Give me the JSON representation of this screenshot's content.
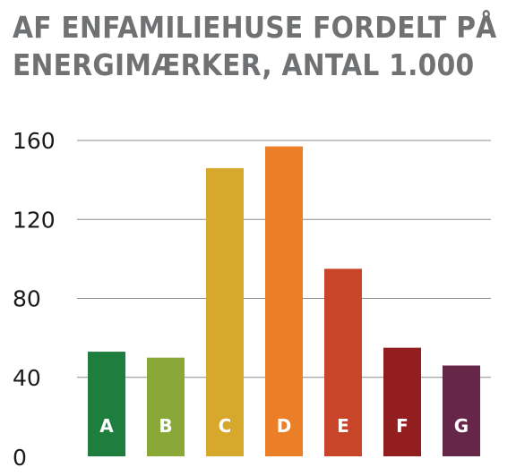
{
  "chart_data": {
    "type": "bar",
    "title_lines": [
      "AF ENFAMILIEHUSE FORDELT PÅ",
      "ENERGIMÆRKER, ANTAL 1.000"
    ],
    "categories": [
      "A",
      "B",
      "C",
      "D",
      "E",
      "F",
      "G"
    ],
    "values": [
      53,
      50,
      146,
      157,
      95,
      55,
      46
    ],
    "colors": [
      "#1e7e3e",
      "#8aa838",
      "#d6a82c",
      "#ea7f27",
      "#c9452a",
      "#921e1f",
      "#652648"
    ],
    "yticks": [
      "0",
      "40",
      "80",
      "120",
      "160"
    ],
    "ylim": [
      0,
      160
    ],
    "grid": true,
    "gridline_color": "#8c8c8c",
    "xlabel": "",
    "ylabel": ""
  }
}
